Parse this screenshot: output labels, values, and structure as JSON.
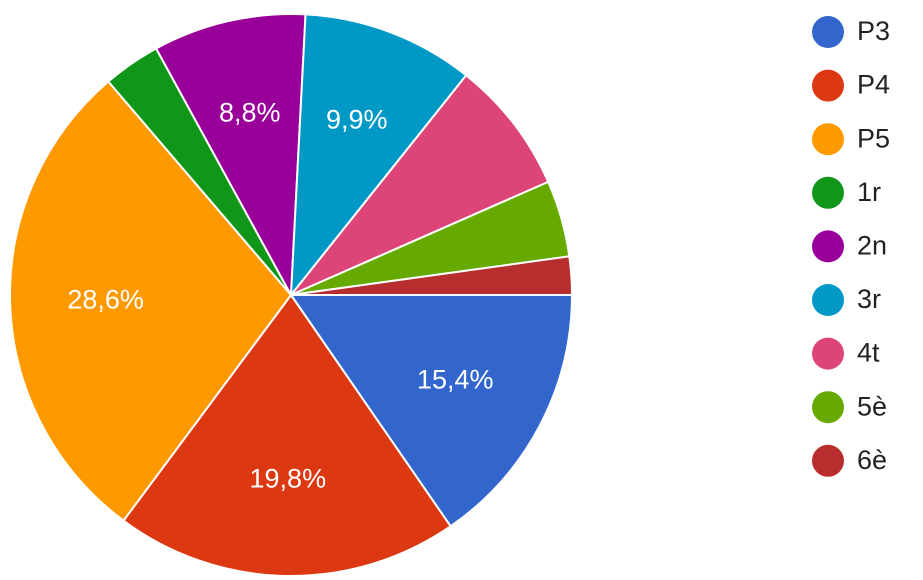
{
  "chart_data": {
    "type": "pie",
    "categories": [
      "P3",
      "P4",
      "P5",
      "1r",
      "2n",
      "3r",
      "4t",
      "5è",
      "6è"
    ],
    "values": [
      15.4,
      19.8,
      28.6,
      3.3,
      8.8,
      9.9,
      7.7,
      4.4,
      2.2
    ],
    "value_labels": [
      "15,4%",
      "19,8%",
      "28,6%",
      null,
      "8,8%",
      "9,9%",
      null,
      null,
      null
    ],
    "colors": [
      "#3366cc",
      "#dc3912",
      "#ff9900",
      "#109618",
      "#990099",
      "#0099c6",
      "#dd4477",
      "#66aa00",
      "#b82e2e"
    ],
    "legend": "right"
  }
}
